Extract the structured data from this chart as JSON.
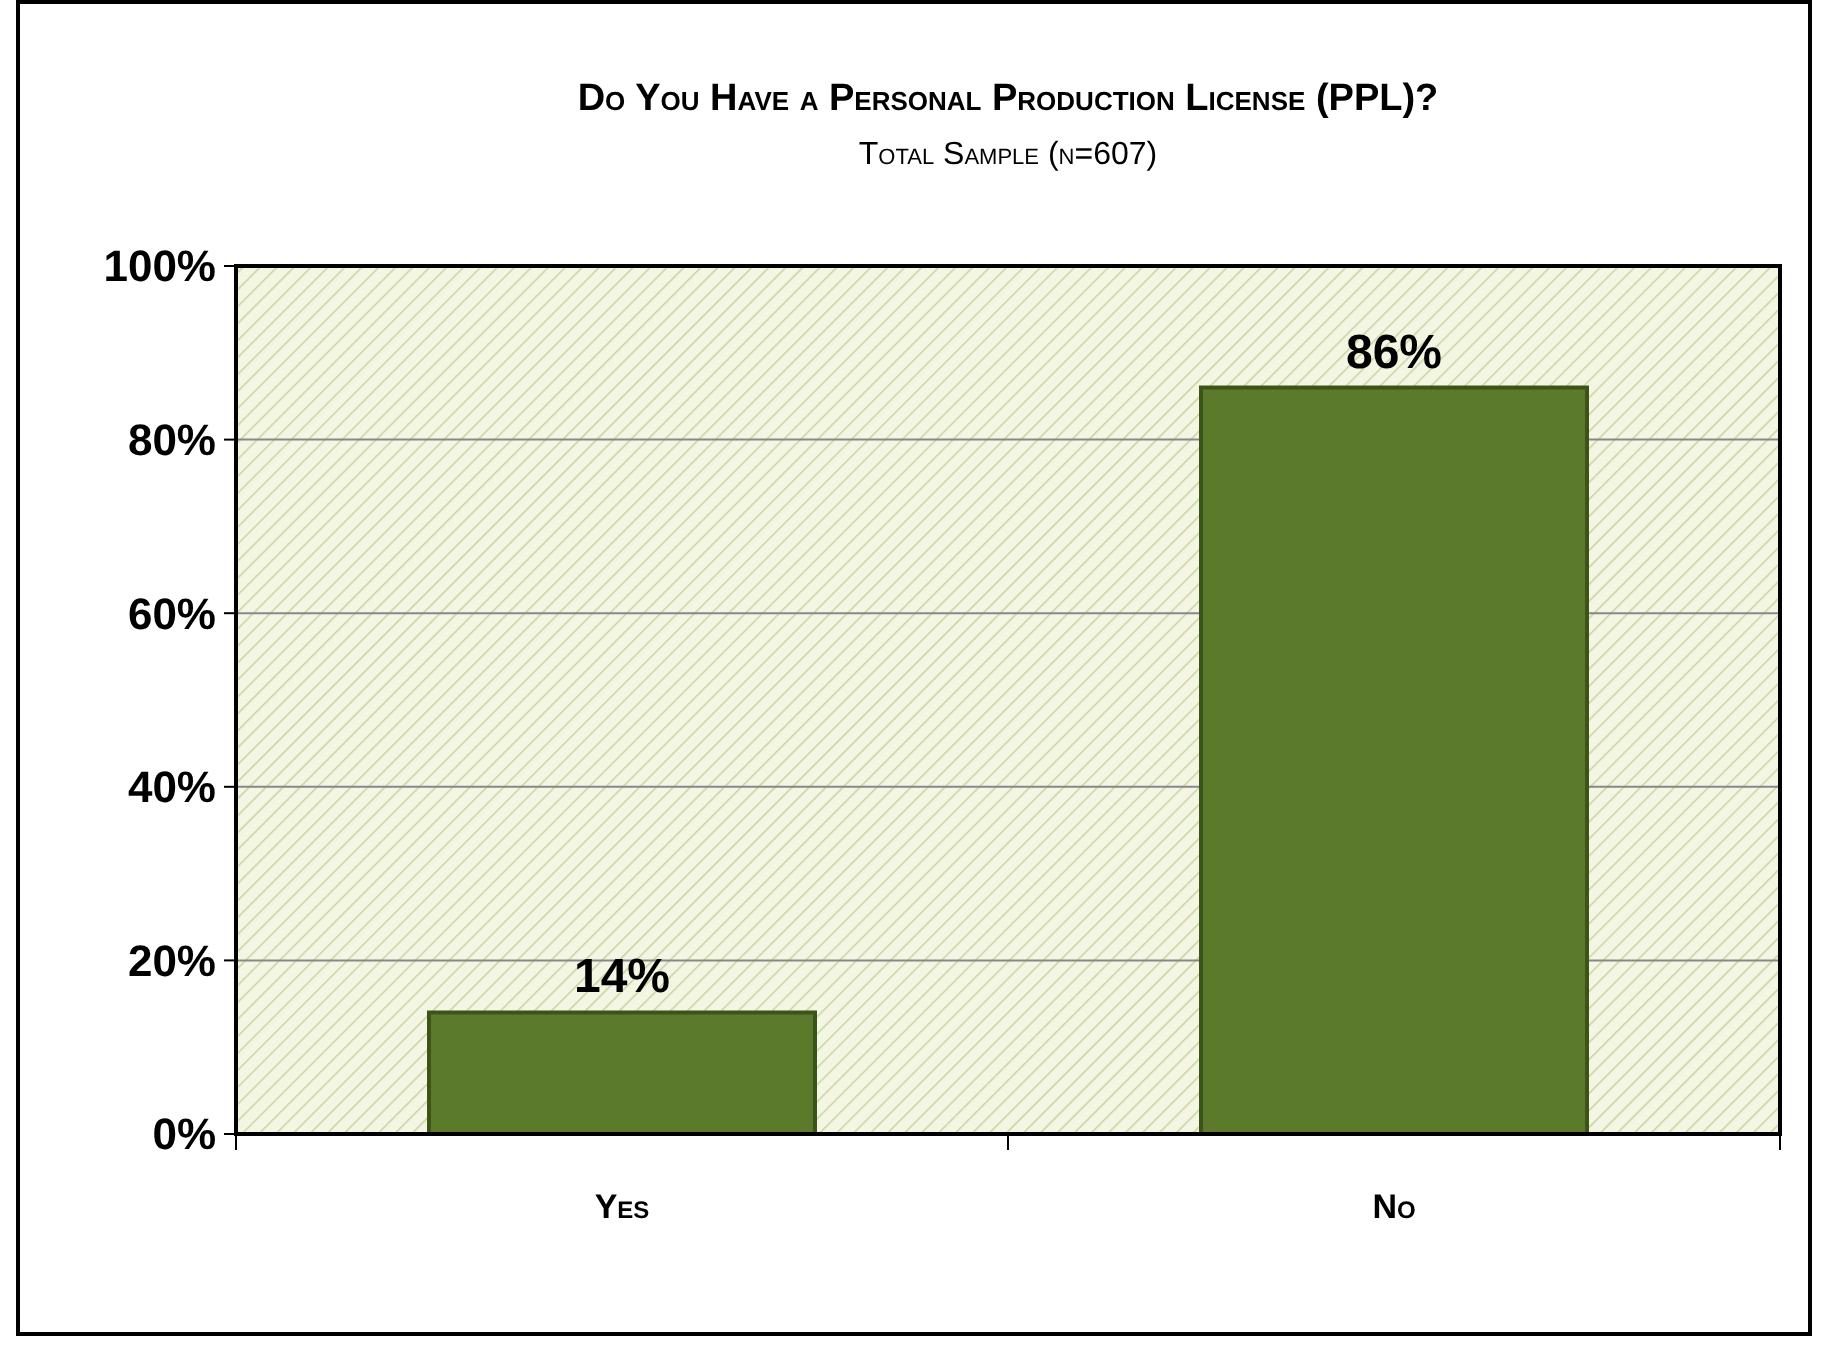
{
  "chart_data": {
    "type": "bar",
    "title": "Do You Have a Personal Production License (PPL)?",
    "subtitle": "Total Sample (n=607)",
    "categories": [
      "Yes",
      "No"
    ],
    "values": [
      14,
      86
    ],
    "color": "#5b7a2c",
    "ylim": [
      0,
      100
    ],
    "yticks": [
      {
        "value": 0,
        "label": "0%"
      },
      {
        "value": 20,
        "label": "20%"
      },
      {
        "value": 40,
        "label": "40%"
      },
      {
        "value": 60,
        "label": "60%"
      },
      {
        "value": 80,
        "label": "80%"
      },
      {
        "value": 100,
        "label": "100%"
      }
    ],
    "value_labels": [
      "14%",
      "86%"
    ],
    "grid": "y"
  }
}
